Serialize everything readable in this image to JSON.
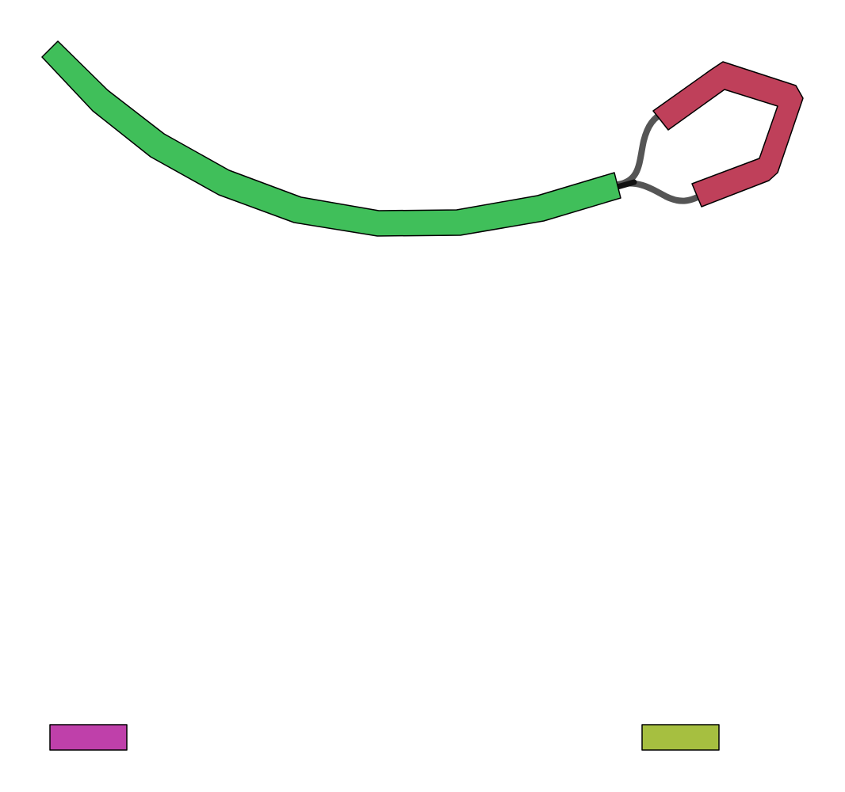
{
  "diagram": {
    "background": "#ffffff",
    "segments": [
      {
        "id": "green-strand",
        "color": "#40bf5a",
        "outline": "#000000"
      },
      {
        "id": "red-strand",
        "color": "#bf405a",
        "outline": "#000000"
      },
      {
        "id": "magenta-block",
        "color": "#bf40aa",
        "outline": "#000000"
      },
      {
        "id": "olive-block",
        "color": "#a6bf40",
        "outline": "#000000"
      }
    ],
    "connectors": [
      {
        "id": "connector-upper",
        "color": "#555555"
      },
      {
        "id": "connector-lower",
        "color": "#555555"
      }
    ]
  }
}
